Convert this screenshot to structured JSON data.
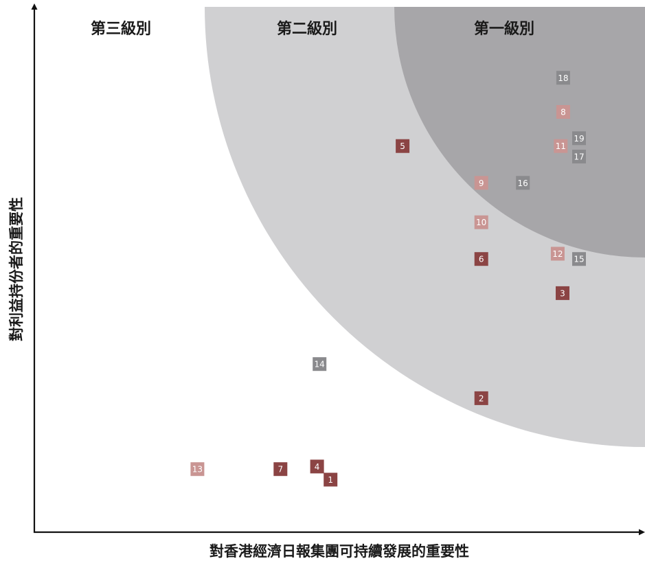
{
  "chart_data": {
    "type": "scatter",
    "xlabel": "對香港經濟日報集團可持續發展的重要性",
    "ylabel": "對利益持份者的重要性",
    "zones": [
      {
        "label": "第三級別",
        "color": "#ffffff"
      },
      {
        "label": "第二級別",
        "color": "#d0d0d2"
      },
      {
        "label": "第一級別",
        "color": "#a7a6a9"
      }
    ],
    "category_colors": {
      "dark_red": "#8b4444",
      "pink": "#c99593",
      "grey": "#8a8a8d"
    },
    "points": [
      {
        "id": "1",
        "x": 48.5,
        "y": 10.0,
        "category": "dark_red"
      },
      {
        "id": "2",
        "x": 73.2,
        "y": 25.5,
        "category": "dark_red"
      },
      {
        "id": "3",
        "x": 86.5,
        "y": 45.5,
        "category": "dark_red"
      },
      {
        "id": "4",
        "x": 46.3,
        "y": 12.5,
        "category": "dark_red"
      },
      {
        "id": "5",
        "x": 60.3,
        "y": 73.5,
        "category": "dark_red"
      },
      {
        "id": "6",
        "x": 73.2,
        "y": 52.0,
        "category": "dark_red"
      },
      {
        "id": "7",
        "x": 40.3,
        "y": 12.0,
        "category": "dark_red"
      },
      {
        "id": "8",
        "x": 86.6,
        "y": 80.0,
        "category": "pink"
      },
      {
        "id": "9",
        "x": 73.2,
        "y": 66.5,
        "category": "pink"
      },
      {
        "id": "10",
        "x": 73.2,
        "y": 59.0,
        "category": "pink"
      },
      {
        "id": "11",
        "x": 86.2,
        "y": 73.5,
        "category": "pink"
      },
      {
        "id": "12",
        "x": 85.7,
        "y": 53.0,
        "category": "pink"
      },
      {
        "id": "13",
        "x": 26.7,
        "y": 12.0,
        "category": "pink"
      },
      {
        "id": "14",
        "x": 46.7,
        "y": 32.0,
        "category": "grey"
      },
      {
        "id": "15",
        "x": 89.2,
        "y": 52.0,
        "category": "grey"
      },
      {
        "id": "16",
        "x": 80.0,
        "y": 66.5,
        "category": "grey"
      },
      {
        "id": "17",
        "x": 89.2,
        "y": 71.5,
        "category": "grey"
      },
      {
        "id": "18",
        "x": 86.6,
        "y": 86.5,
        "category": "grey"
      },
      {
        "id": "19",
        "x": 89.2,
        "y": 75.0,
        "category": "grey"
      }
    ]
  }
}
